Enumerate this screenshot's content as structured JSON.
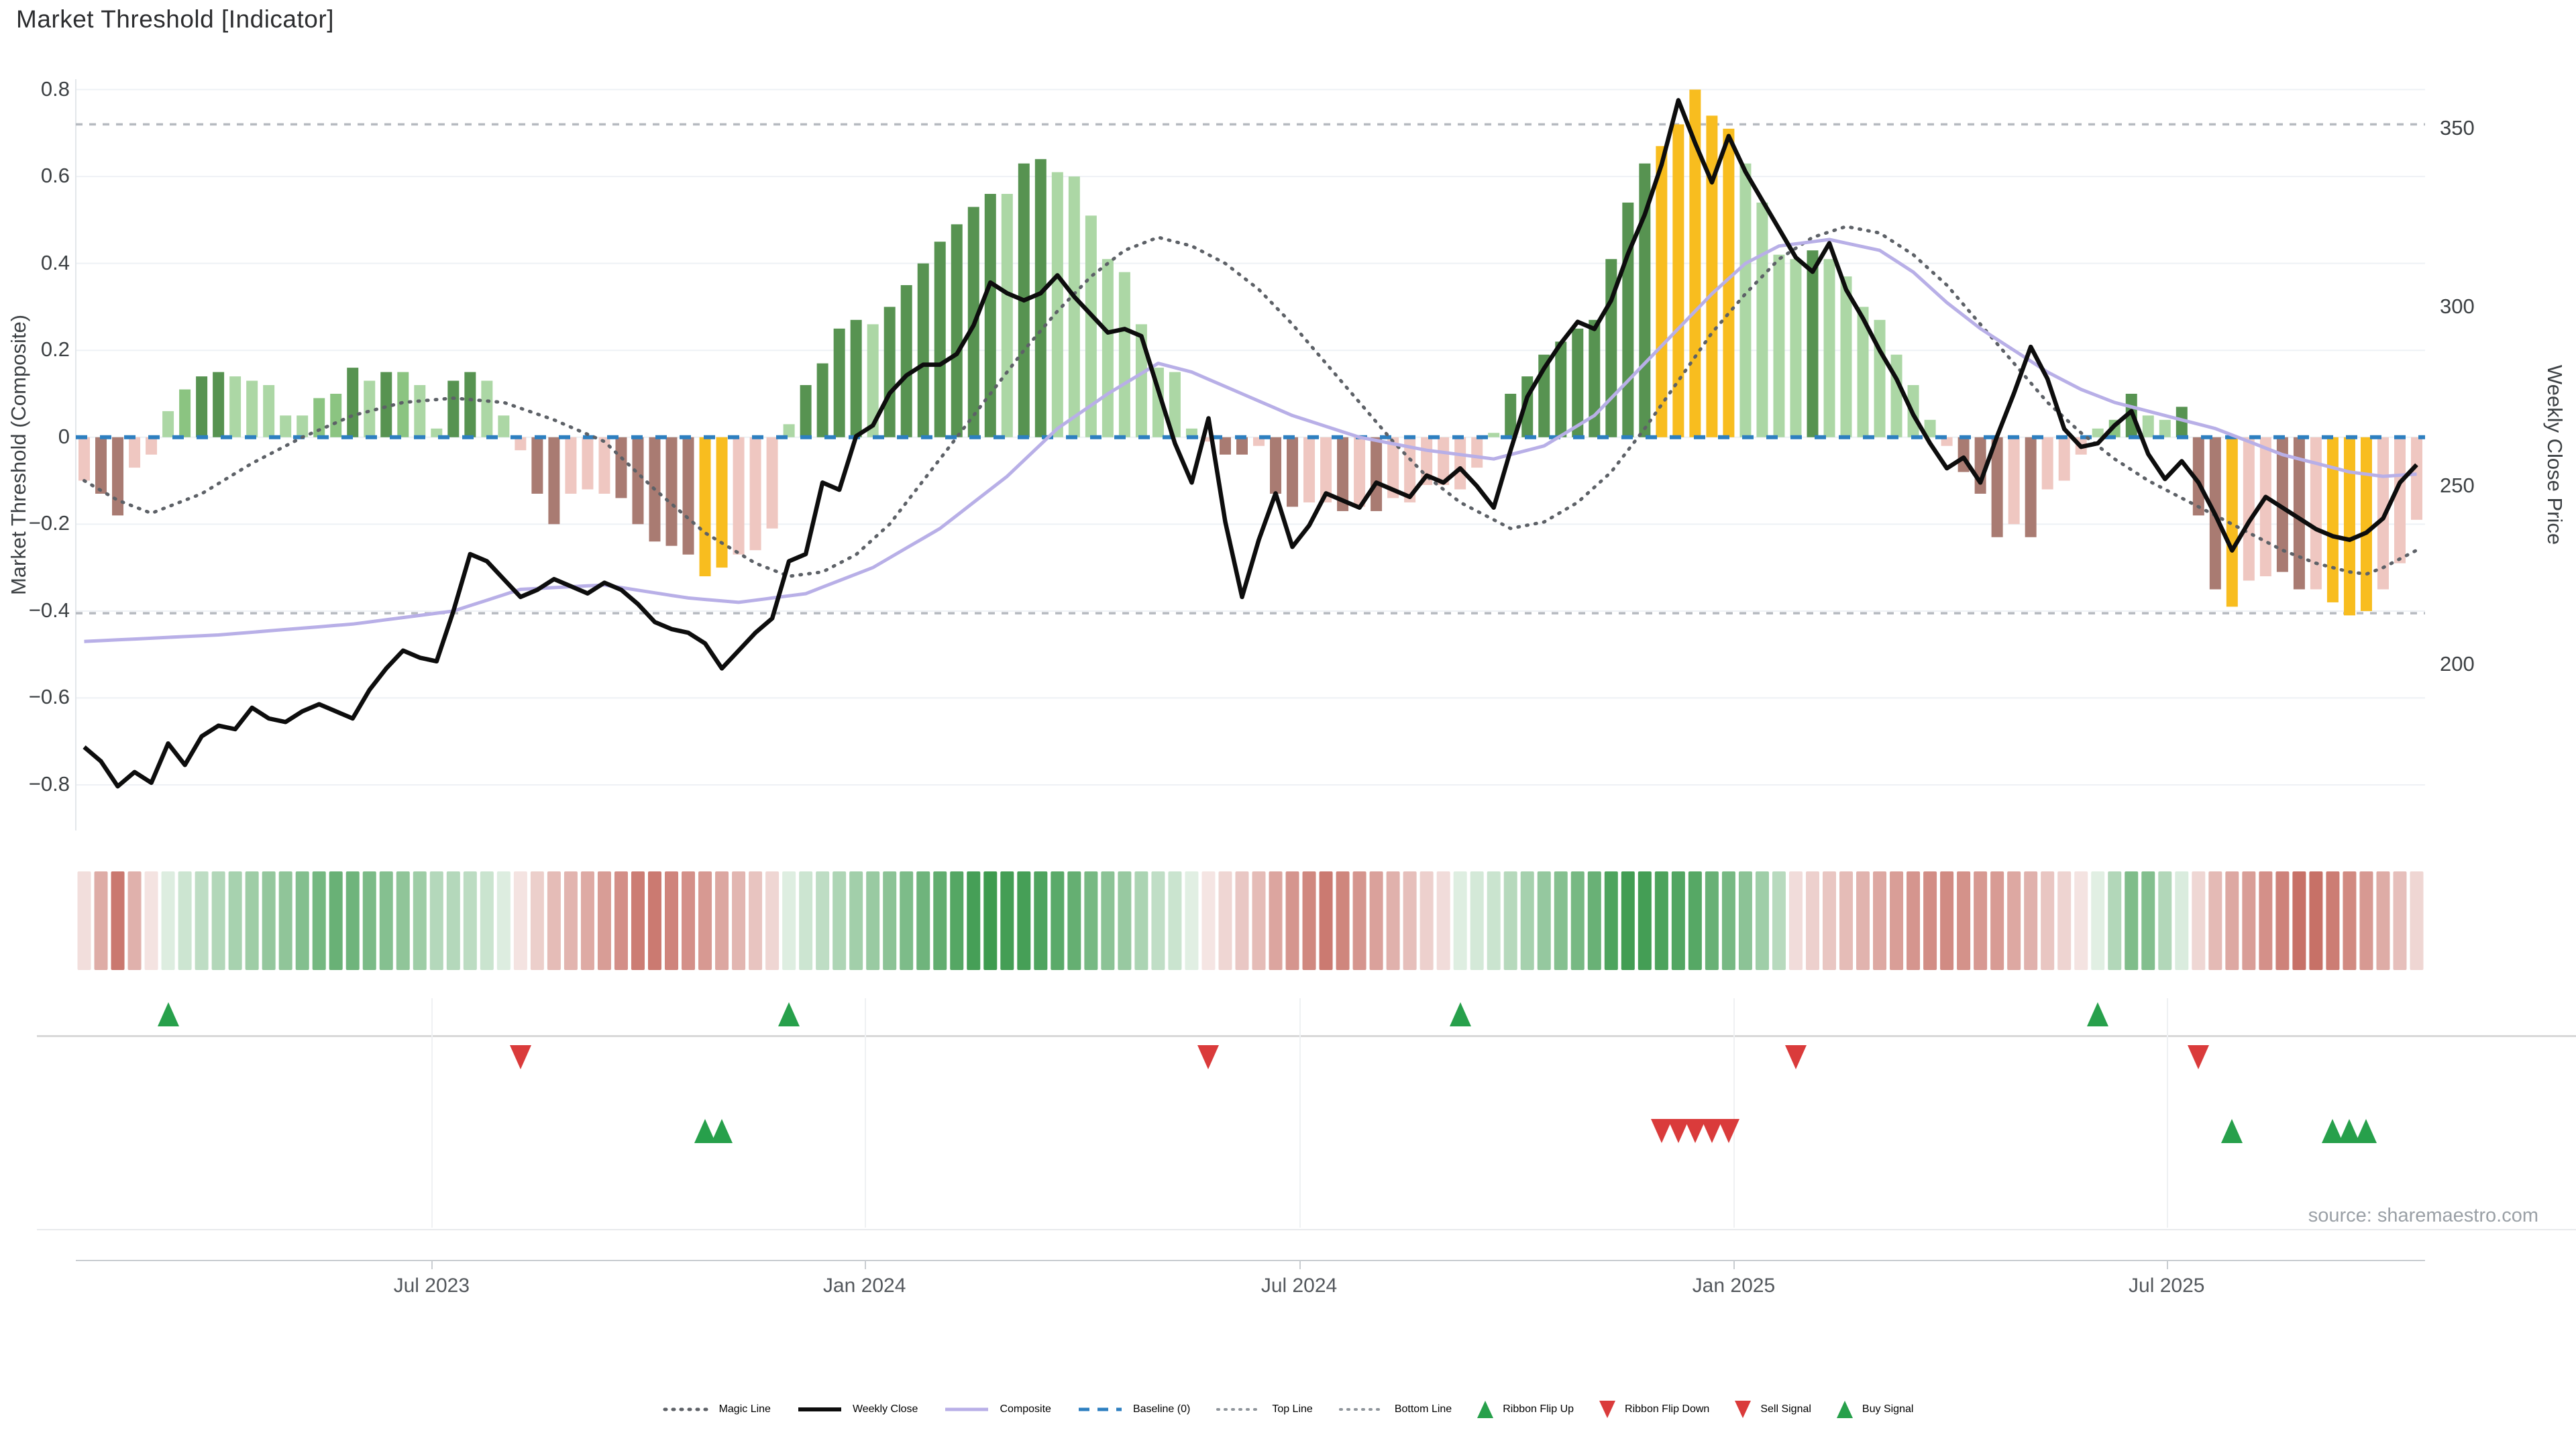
{
  "ui": {
    "title": "Market Threshold [Indicator]",
    "left_axis_title": "Market Threshold (Composite)",
    "right_axis_title": "Weekly Close Price",
    "source": "source: sharemaestro.com",
    "legend": [
      {
        "label": "Magic Line",
        "swatch": "dotted-dark"
      },
      {
        "label": "Weekly Close",
        "swatch": "solid-black"
      },
      {
        "label": "Composite",
        "swatch": "solid-purple"
      },
      {
        "label": "Baseline (0)",
        "swatch": "dashed-blue"
      },
      {
        "label": "Top Line",
        "swatch": "dotted-light"
      },
      {
        "label": "Bottom Line",
        "swatch": "dotted-light"
      },
      {
        "label": "Ribbon Flip Up",
        "swatch": "tri-up"
      },
      {
        "label": "Ribbon Flip Down",
        "swatch": "tri-down"
      },
      {
        "label": "Sell Signal",
        "swatch": "tri-down"
      },
      {
        "label": "Buy Signal",
        "swatch": "tri-up"
      }
    ]
  },
  "colors": {
    "grid": "#eef1f5",
    "spine": "#c9cdd1",
    "magic_line": "#5d6167",
    "composite_line": "#b8afe7",
    "close_line": "#0d0d0d",
    "baseline": "#2d7fc0",
    "top_bottom_line": "#b6bac0",
    "signal_green": "#27a04b",
    "signal_red": "#da3b3b",
    "ribbon_green_rgb": "52,150,70",
    "ribbon_red_rgb": "187,82,70"
  },
  "chart_data": {
    "type": "combo",
    "title": "Market Threshold [Indicator]",
    "ylabel_left": "Market Threshold (Composite)",
    "ylabel_right": "Weekly Close Price",
    "weeks": 140,
    "left_axis": {
      "min": -0.905,
      "max": 0.824,
      "ticks": [
        0.8,
        0.6,
        0.4,
        0.2,
        0,
        -0.2,
        -0.4,
        -0.6,
        -0.8
      ]
    },
    "right_axis": {
      "price_at_zero": 263.7,
      "price_per_unit": 121.6,
      "ticks": [
        350,
        300,
        250,
        200
      ]
    },
    "x_tick_labels": [
      {
        "label": "Jul 2023",
        "week": 20.7
      },
      {
        "label": "Jan 2024",
        "week": 46.5
      },
      {
        "label": "Jul 2024",
        "week": 72.4
      },
      {
        "label": "Jan 2025",
        "week": 98.3
      },
      {
        "label": "Jul 2025",
        "week": 124.1
      }
    ],
    "reference_lines": {
      "top_line": 0.72,
      "baseline": 0,
      "bottom_line": -0.405
    },
    "bar_palette": {
      "p": "#efc7c1",
      "r": "#a97b72",
      "g": "#f8bd1f",
      "l": "#acd7a5",
      "m": "#8bc481",
      "d": "#579351"
    },
    "bars": [
      [
        -0.1,
        "p"
      ],
      [
        -0.13,
        "r"
      ],
      [
        -0.18,
        "r"
      ],
      [
        -0.07,
        "p"
      ],
      [
        -0.04,
        "p"
      ],
      [
        0.06,
        "l"
      ],
      [
        0.11,
        "m"
      ],
      [
        0.14,
        "d"
      ],
      [
        0.15,
        "d"
      ],
      [
        0.14,
        "l"
      ],
      [
        0.13,
        "l"
      ],
      [
        0.12,
        "l"
      ],
      [
        0.05,
        "l"
      ],
      [
        0.05,
        "l"
      ],
      [
        0.09,
        "m"
      ],
      [
        0.1,
        "m"
      ],
      [
        0.16,
        "d"
      ],
      [
        0.13,
        "l"
      ],
      [
        0.15,
        "d"
      ],
      [
        0.15,
        "m"
      ],
      [
        0.12,
        "l"
      ],
      [
        0.02,
        "l"
      ],
      [
        0.13,
        "d"
      ],
      [
        0.15,
        "d"
      ],
      [
        0.13,
        "l"
      ],
      [
        0.05,
        "l"
      ],
      [
        -0.03,
        "p"
      ],
      [
        -0.13,
        "r"
      ],
      [
        -0.2,
        "r"
      ],
      [
        -0.13,
        "p"
      ],
      [
        -0.12,
        "p"
      ],
      [
        -0.13,
        "p"
      ],
      [
        -0.14,
        "r"
      ],
      [
        -0.2,
        "r"
      ],
      [
        -0.24,
        "r"
      ],
      [
        -0.25,
        "r"
      ],
      [
        -0.27,
        "r"
      ],
      [
        -0.32,
        "g"
      ],
      [
        -0.3,
        "g"
      ],
      [
        -0.27,
        "p"
      ],
      [
        -0.26,
        "p"
      ],
      [
        -0.21,
        "p"
      ],
      [
        0.03,
        "l"
      ],
      [
        0.12,
        "d"
      ],
      [
        0.17,
        "d"
      ],
      [
        0.25,
        "d"
      ],
      [
        0.27,
        "d"
      ],
      [
        0.26,
        "l"
      ],
      [
        0.3,
        "d"
      ],
      [
        0.35,
        "d"
      ],
      [
        0.4,
        "d"
      ],
      [
        0.45,
        "d"
      ],
      [
        0.49,
        "d"
      ],
      [
        0.53,
        "d"
      ],
      [
        0.56,
        "d"
      ],
      [
        0.56,
        "l"
      ],
      [
        0.63,
        "d"
      ],
      [
        0.64,
        "d"
      ],
      [
        0.61,
        "l"
      ],
      [
        0.6,
        "l"
      ],
      [
        0.51,
        "l"
      ],
      [
        0.41,
        "l"
      ],
      [
        0.38,
        "l"
      ],
      [
        0.26,
        "l"
      ],
      [
        0.16,
        "l"
      ],
      [
        0.15,
        "l"
      ],
      [
        0.02,
        "l"
      ],
      [
        -0.01,
        "p"
      ],
      [
        -0.04,
        "r"
      ],
      [
        -0.04,
        "r"
      ],
      [
        -0.02,
        "p"
      ],
      [
        -0.13,
        "r"
      ],
      [
        -0.16,
        "r"
      ],
      [
        -0.15,
        "p"
      ],
      [
        -0.15,
        "p"
      ],
      [
        -0.17,
        "r"
      ],
      [
        -0.16,
        "p"
      ],
      [
        -0.17,
        "r"
      ],
      [
        -0.14,
        "p"
      ],
      [
        -0.15,
        "p"
      ],
      [
        -0.11,
        "p"
      ],
      [
        -0.11,
        "p"
      ],
      [
        -0.12,
        "p"
      ],
      [
        -0.07,
        "p"
      ],
      [
        0.01,
        "l"
      ],
      [
        0.1,
        "d"
      ],
      [
        0.14,
        "d"
      ],
      [
        0.19,
        "d"
      ],
      [
        0.22,
        "d"
      ],
      [
        0.25,
        "d"
      ],
      [
        0.27,
        "d"
      ],
      [
        0.41,
        "d"
      ],
      [
        0.54,
        "d"
      ],
      [
        0.63,
        "d"
      ],
      [
        0.67,
        "g"
      ],
      [
        0.72,
        "g"
      ],
      [
        0.8,
        "g"
      ],
      [
        0.74,
        "g"
      ],
      [
        0.71,
        "g"
      ],
      [
        0.63,
        "l"
      ],
      [
        0.54,
        "l"
      ],
      [
        0.42,
        "l"
      ],
      [
        0.41,
        "l"
      ],
      [
        0.43,
        "d"
      ],
      [
        0.41,
        "l"
      ],
      [
        0.37,
        "l"
      ],
      [
        0.3,
        "l"
      ],
      [
        0.27,
        "l"
      ],
      [
        0.19,
        "l"
      ],
      [
        0.12,
        "l"
      ],
      [
        0.04,
        "l"
      ],
      [
        -0.02,
        "p"
      ],
      [
        -0.08,
        "r"
      ],
      [
        -0.13,
        "r"
      ],
      [
        -0.23,
        "r"
      ],
      [
        -0.2,
        "p"
      ],
      [
        -0.23,
        "r"
      ],
      [
        -0.12,
        "p"
      ],
      [
        -0.1,
        "p"
      ],
      [
        -0.04,
        "p"
      ],
      [
        0.02,
        "l"
      ],
      [
        0.04,
        "m"
      ],
      [
        0.1,
        "d"
      ],
      [
        0.05,
        "l"
      ],
      [
        0.04,
        "l"
      ],
      [
        0.07,
        "d"
      ],
      [
        -0.18,
        "r"
      ],
      [
        -0.35,
        "r"
      ],
      [
        -0.39,
        "g"
      ],
      [
        -0.33,
        "p"
      ],
      [
        -0.32,
        "p"
      ],
      [
        -0.31,
        "r"
      ],
      [
        -0.35,
        "r"
      ],
      [
        -0.35,
        "p"
      ],
      [
        -0.38,
        "g"
      ],
      [
        -0.41,
        "g"
      ],
      [
        -0.4,
        "g"
      ],
      [
        -0.35,
        "p"
      ],
      [
        -0.29,
        "p"
      ],
      [
        -0.19,
        "p"
      ]
    ],
    "weekly_close": [
      177,
      173,
      166,
      170,
      167,
      178,
      172,
      180,
      183,
      182,
      188,
      185,
      184,
      187,
      189,
      187,
      185,
      193,
      199,
      204,
      202,
      201,
      215,
      231,
      229,
      224,
      219,
      221,
      224,
      222,
      220,
      223,
      221,
      217,
      212,
      210,
      209,
      206,
      199,
      204,
      209,
      213,
      229,
      231,
      251,
      249,
      264,
      267,
      276,
      281,
      284,
      284,
      287,
      295,
      307,
      304,
      302,
      304,
      309,
      303,
      298,
      293,
      294,
      292,
      277,
      262,
      251,
      269,
      240,
      219,
      235,
      248,
      233,
      239,
      248,
      246,
      244,
      251,
      249,
      247,
      253,
      251,
      255,
      250,
      244,
      260,
      275,
      283,
      290,
      296,
      294,
      302,
      315,
      326,
      340,
      358,
      346,
      335,
      348,
      338,
      330,
      322,
      314,
      310,
      318,
      305,
      297,
      288,
      280,
      270,
      262,
      255,
      258,
      251,
      264,
      276,
      289,
      280,
      266,
      261,
      262,
      267,
      271,
      259,
      252,
      257,
      251,
      242,
      232,
      240,
      247,
      244,
      241,
      238,
      236,
      235,
      237,
      241,
      251,
      256
    ],
    "composite_keypoints": [
      [
        0,
        -0.47
      ],
      [
        8,
        -0.455
      ],
      [
        16,
        -0.43
      ],
      [
        22,
        -0.4
      ],
      [
        26,
        -0.35
      ],
      [
        31,
        -0.34
      ],
      [
        36,
        -0.37
      ],
      [
        39,
        -0.38
      ],
      [
        43,
        -0.36
      ],
      [
        47,
        -0.3
      ],
      [
        51,
        -0.21
      ],
      [
        55,
        -0.09
      ],
      [
        58,
        0.02
      ],
      [
        61,
        0.1
      ],
      [
        64,
        0.17
      ],
      [
        66,
        0.15
      ],
      [
        69,
        0.1
      ],
      [
        72,
        0.05
      ],
      [
        76,
        0.0
      ],
      [
        80,
        -0.03
      ],
      [
        84,
        -0.05
      ],
      [
        87,
        -0.02
      ],
      [
        90,
        0.05
      ],
      [
        93,
        0.17
      ],
      [
        95,
        0.25
      ],
      [
        97,
        0.33
      ],
      [
        99,
        0.4
      ],
      [
        101,
        0.44
      ],
      [
        104,
        0.455
      ],
      [
        107,
        0.43
      ],
      [
        109,
        0.38
      ],
      [
        111,
        0.31
      ],
      [
        113,
        0.25
      ],
      [
        115,
        0.2
      ],
      [
        117,
        0.15
      ],
      [
        119,
        0.11
      ],
      [
        121,
        0.08
      ],
      [
        124,
        0.05
      ],
      [
        127,
        0.02
      ],
      [
        129,
        -0.01
      ],
      [
        131,
        -0.04
      ],
      [
        133,
        -0.06
      ],
      [
        135,
        -0.08
      ],
      [
        137,
        -0.09
      ],
      [
        139,
        -0.085
      ]
    ],
    "magic_keypoints": [
      [
        0,
        -0.1
      ],
      [
        2,
        -0.145
      ],
      [
        4,
        -0.175
      ],
      [
        7,
        -0.13
      ],
      [
        10,
        -0.06
      ],
      [
        13,
        0.0
      ],
      [
        16,
        0.05
      ],
      [
        19,
        0.08
      ],
      [
        22,
        0.09
      ],
      [
        25,
        0.08
      ],
      [
        28,
        0.04
      ],
      [
        31,
        -0.01
      ],
      [
        34,
        -0.12
      ],
      [
        37,
        -0.22
      ],
      [
        40,
        -0.29
      ],
      [
        42,
        -0.32
      ],
      [
        44,
        -0.31
      ],
      [
        46,
        -0.27
      ],
      [
        48,
        -0.2
      ],
      [
        50,
        -0.1
      ],
      [
        52,
        0.0
      ],
      [
        54,
        0.1
      ],
      [
        56,
        0.2
      ],
      [
        58,
        0.29
      ],
      [
        60,
        0.37
      ],
      [
        62,
        0.43
      ],
      [
        64,
        0.46
      ],
      [
        66,
        0.44
      ],
      [
        68,
        0.4
      ],
      [
        70,
        0.34
      ],
      [
        72,
        0.26
      ],
      [
        74,
        0.17
      ],
      [
        76,
        0.08
      ],
      [
        78,
        -0.01
      ],
      [
        80,
        -0.09
      ],
      [
        82,
        -0.15
      ],
      [
        84,
        -0.19
      ],
      [
        85,
        -0.21
      ],
      [
        87,
        -0.195
      ],
      [
        89,
        -0.15
      ],
      [
        91,
        -0.08
      ],
      [
        93,
        0.02
      ],
      [
        95,
        0.13
      ],
      [
        97,
        0.24
      ],
      [
        99,
        0.33
      ],
      [
        101,
        0.41
      ],
      [
        103,
        0.46
      ],
      [
        105,
        0.485
      ],
      [
        107,
        0.47
      ],
      [
        109,
        0.42
      ],
      [
        111,
        0.35
      ],
      [
        113,
        0.26
      ],
      [
        115,
        0.17
      ],
      [
        117,
        0.08
      ],
      [
        119,
        0.01
      ],
      [
        121,
        -0.05
      ],
      [
        123,
        -0.1
      ],
      [
        125,
        -0.14
      ],
      [
        127,
        -0.18
      ],
      [
        129,
        -0.22
      ],
      [
        131,
        -0.26
      ],
      [
        133,
        -0.29
      ],
      [
        135,
        -0.31
      ],
      [
        136,
        -0.315
      ],
      [
        137,
        -0.3
      ],
      [
        139,
        -0.26
      ]
    ],
    "ribbon_segments": [
      {
        "start": 0,
        "end": 4,
        "sign": -1
      },
      {
        "start": 5,
        "end": 25,
        "sign": 1
      },
      {
        "start": 26,
        "end": 41,
        "sign": -1
      },
      {
        "start": 42,
        "end": 66,
        "sign": 1
      },
      {
        "start": 67,
        "end": 81,
        "sign": -1
      },
      {
        "start": 82,
        "end": 101,
        "sign": 1
      },
      {
        "start": 102,
        "end": 119,
        "sign": -1
      },
      {
        "start": 120,
        "end": 125,
        "sign": 1
      },
      {
        "start": 126,
        "end": 139,
        "sign": -1
      }
    ],
    "signals": {
      "ribbon_flip_up_weeks": [
        5,
        42,
        82,
        120
      ],
      "ribbon_flip_down_weeks": [
        26,
        67,
        102,
        126
      ],
      "sell_weeks": [
        94,
        95,
        96,
        97,
        98
      ],
      "buy_weeks": [
        37,
        38,
        128,
        134,
        135,
        136
      ]
    }
  }
}
